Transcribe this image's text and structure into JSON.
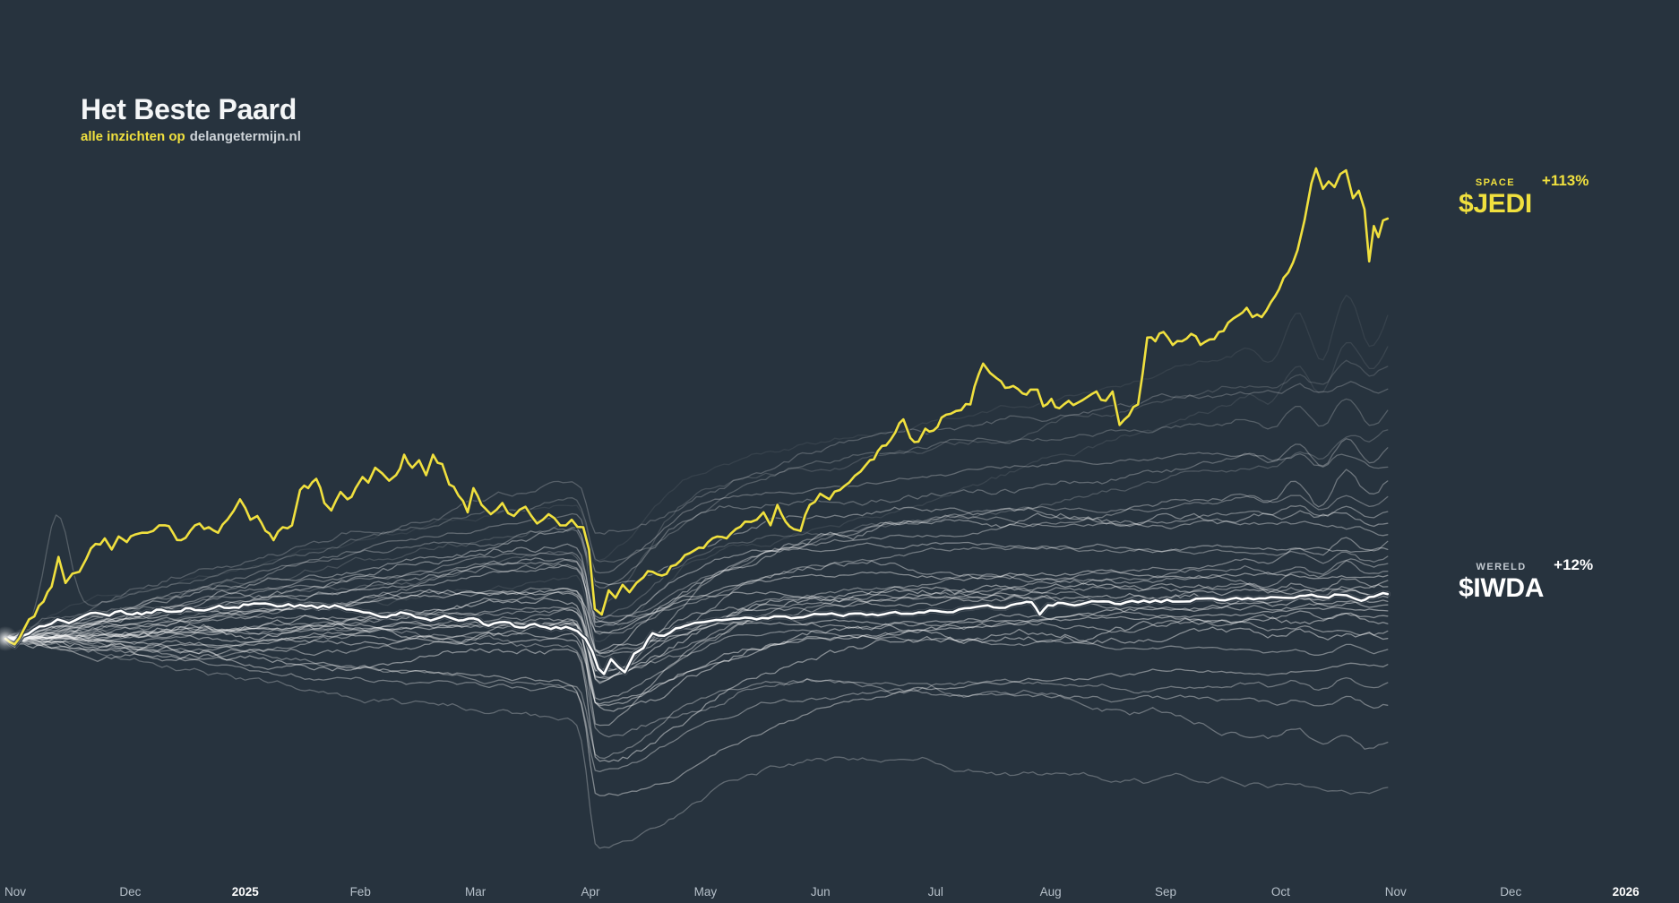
{
  "header": {
    "title": "Het Beste Paard",
    "subtitle_highlight": "alle inzichten op",
    "subtitle_rest": "delangetermijn.nl"
  },
  "labels": {
    "jedi": {
      "category": "SPACE",
      "ticker": "$JEDI",
      "change": "+113%"
    },
    "iwda": {
      "category": "WERELD",
      "ticker": "$IWDA",
      "change": "+12%"
    }
  },
  "colors": {
    "background": "#27333e",
    "accent_yellow": "#f0e03e",
    "benchmark_white": "#ffffff",
    "background_lines": "#ffffff",
    "axis_text": "#b6c0c9",
    "axis_text_bold": "#ffffff"
  },
  "chart_data": {
    "type": "line",
    "title": "Het Beste Paard",
    "description": "Cumulative return race of many funds from Nov 2024 to Nov 2025; highlighted $JEDI (SPACE) +113% vs benchmark $IWDA (WERELD) +12%, with ~36 unlabeled grey fund lines.",
    "x_axis": {
      "tick_labels": [
        "Nov",
        "Dec",
        "2025",
        "Feb",
        "Mar",
        "Apr",
        "May",
        "Jun",
        "Jul",
        "Aug",
        "Sep",
        "Oct",
        "Nov",
        "Dec",
        "2026"
      ],
      "bold_ticks": [
        "2025",
        "2026"
      ],
      "months_span": 14,
      "data_end_month": 11.96
    },
    "y_axis": {
      "visible": false,
      "unit": "percent_return_since_start",
      "baseline_pct": 0,
      "implied_range_pct": [
        -50,
        130
      ],
      "gridlines": false
    },
    "legend_position": "right-of-line-ends",
    "series": [
      {
        "name": "$JEDI",
        "category": "SPACE",
        "color": "#f0e03e",
        "final_return_pct": 113,
        "texture_jitter_pct": 1.0,
        "points": [
          [
            0,
            0
          ],
          [
            0.08,
            -1.5
          ],
          [
            0.16,
            2.5
          ],
          [
            0.25,
            6
          ],
          [
            0.33,
            10
          ],
          [
            0.4,
            14
          ],
          [
            0.46,
            22
          ],
          [
            0.52,
            15
          ],
          [
            0.58,
            17.5
          ],
          [
            0.64,
            18
          ],
          [
            0.7,
            21.5
          ],
          [
            0.78,
            25.5
          ],
          [
            0.86,
            27
          ],
          [
            0.92,
            24
          ],
          [
            0.98,
            27.5
          ],
          [
            1.05,
            26
          ],
          [
            1.12,
            28
          ],
          [
            1.18,
            28.5
          ],
          [
            1.28,
            29
          ],
          [
            1.38,
            30.5
          ],
          [
            1.45,
            28.5
          ],
          [
            1.52,
            26.5
          ],
          [
            1.6,
            29
          ],
          [
            1.68,
            31
          ],
          [
            1.76,
            30
          ],
          [
            1.84,
            28.5
          ],
          [
            1.92,
            32
          ],
          [
            2.03,
            37.5
          ],
          [
            2.12,
            32
          ],
          [
            2.18,
            33
          ],
          [
            2.25,
            29
          ],
          [
            2.32,
            26.5
          ],
          [
            2.4,
            30
          ],
          [
            2.48,
            30.5
          ],
          [
            2.55,
            40
          ],
          [
            2.62,
            40.5
          ],
          [
            2.69,
            43
          ],
          [
            2.76,
            36.5
          ],
          [
            2.82,
            34.5
          ],
          [
            2.9,
            39.5
          ],
          [
            2.96,
            37.5
          ],
          [
            3.03,
            40.5
          ],
          [
            3.09,
            43.5
          ],
          [
            3.14,
            42
          ],
          [
            3.2,
            46
          ],
          [
            3.26,
            44.5
          ],
          [
            3.32,
            42.5
          ],
          [
            3.38,
            44
          ],
          [
            3.45,
            49.5
          ],
          [
            3.52,
            46
          ],
          [
            3.58,
            48
          ],
          [
            3.64,
            44
          ],
          [
            3.7,
            49.5
          ],
          [
            3.78,
            47
          ],
          [
            3.84,
            41.5
          ],
          [
            3.92,
            38.5
          ],
          [
            4,
            34
          ],
          [
            4.05,
            40.5
          ],
          [
            4.12,
            36
          ],
          [
            4.2,
            33.5
          ],
          [
            4.3,
            36.5
          ],
          [
            4.4,
            33
          ],
          [
            4.5,
            35.5
          ],
          [
            4.6,
            31
          ],
          [
            4.7,
            33.5
          ],
          [
            4.8,
            30.5
          ],
          [
            4.9,
            32
          ],
          [
            5,
            30
          ],
          [
            5.05,
            24
          ],
          [
            5.1,
            8
          ],
          [
            5.16,
            6.5
          ],
          [
            5.22,
            13
          ],
          [
            5.28,
            11
          ],
          [
            5.34,
            14.5
          ],
          [
            5.4,
            12.5
          ],
          [
            5.46,
            15
          ],
          [
            5.52,
            16.5
          ],
          [
            5.6,
            18
          ],
          [
            5.68,
            17
          ],
          [
            5.76,
            19.5
          ],
          [
            5.84,
            21
          ],
          [
            5.92,
            23
          ],
          [
            6,
            24.5
          ],
          [
            6.08,
            26
          ],
          [
            6.16,
            27.5
          ],
          [
            6.24,
            27
          ],
          [
            6.32,
            29.5
          ],
          [
            6.4,
            31.5
          ],
          [
            6.5,
            32
          ],
          [
            6.56,
            34
          ],
          [
            6.62,
            30.5
          ],
          [
            6.68,
            36
          ],
          [
            6.75,
            31.5
          ],
          [
            6.82,
            29.5
          ],
          [
            6.88,
            29
          ],
          [
            6.96,
            36
          ],
          [
            7.05,
            39
          ],
          [
            7.13,
            37.5
          ],
          [
            7.22,
            40
          ],
          [
            7.3,
            42
          ],
          [
            7.4,
            45
          ],
          [
            7.48,
            48
          ],
          [
            7.55,
            50.5
          ],
          [
            7.62,
            52
          ],
          [
            7.7,
            55.5
          ],
          [
            7.77,
            59
          ],
          [
            7.83,
            54
          ],
          [
            7.9,
            53
          ],
          [
            7.96,
            56.5
          ],
          [
            8.03,
            56
          ],
          [
            8.1,
            59.5
          ],
          [
            8.18,
            60.5
          ],
          [
            8.27,
            61.5
          ],
          [
            8.35,
            63
          ],
          [
            8.42,
            71
          ],
          [
            8.46,
            74
          ],
          [
            8.52,
            71.5
          ],
          [
            8.58,
            70
          ],
          [
            8.65,
            67.5
          ],
          [
            8.72,
            68
          ],
          [
            8.8,
            66
          ],
          [
            8.87,
            67
          ],
          [
            8.93,
            67
          ],
          [
            8.98,
            62.5
          ],
          [
            9.05,
            64.5
          ],
          [
            9.12,
            62
          ],
          [
            9.2,
            64
          ],
          [
            9.28,
            63.5
          ],
          [
            9.36,
            65
          ],
          [
            9.44,
            66.5
          ],
          [
            9.52,
            64
          ],
          [
            9.58,
            66.5
          ],
          [
            9.64,
            57.5
          ],
          [
            9.72,
            60
          ],
          [
            9.8,
            63
          ],
          [
            9.88,
            81
          ],
          [
            9.95,
            80
          ],
          [
            10.02,
            82.5
          ],
          [
            10.1,
            79
          ],
          [
            10.18,
            80
          ],
          [
            10.26,
            82
          ],
          [
            10.34,
            79
          ],
          [
            10.42,
            80.5
          ],
          [
            10.5,
            82.5
          ],
          [
            10.58,
            85
          ],
          [
            10.67,
            87
          ],
          [
            10.74,
            89
          ],
          [
            10.79,
            86.5
          ],
          [
            10.87,
            86.5
          ],
          [
            10.95,
            90.5
          ],
          [
            11.02,
            94
          ],
          [
            11.1,
            98.5
          ],
          [
            11.18,
            104.5
          ],
          [
            11.24,
            112.5
          ],
          [
            11.3,
            122.5
          ],
          [
            11.34,
            126.5
          ],
          [
            11.4,
            121
          ],
          [
            11.45,
            123
          ],
          [
            11.5,
            121.5
          ],
          [
            11.55,
            125
          ],
          [
            11.6,
            126
          ],
          [
            11.66,
            118.5
          ],
          [
            11.71,
            120.5
          ],
          [
            11.76,
            115.5
          ],
          [
            11.8,
            101.5
          ],
          [
            11.84,
            111
          ],
          [
            11.88,
            108
          ],
          [
            11.92,
            112.5
          ],
          [
            11.96,
            113
          ]
        ]
      },
      {
        "name": "$IWDA",
        "category": "WERELD",
        "color": "#ffffff",
        "final_return_pct": 12,
        "texture_jitter_pct": 0.4,
        "points": [
          [
            0,
            0
          ],
          [
            0.08,
            -2
          ],
          [
            0.15,
            0.8
          ],
          [
            0.25,
            2.5
          ],
          [
            0.34,
            3.4
          ],
          [
            0.45,
            5.2
          ],
          [
            0.55,
            4.2
          ],
          [
            0.65,
            5.7
          ],
          [
            0.78,
            7
          ],
          [
            0.9,
            6.2
          ],
          [
            1,
            7.5
          ],
          [
            1.1,
            6.5
          ],
          [
            1.22,
            7.1
          ],
          [
            1.35,
            7.8
          ],
          [
            1.48,
            7.3
          ],
          [
            1.6,
            8.2
          ],
          [
            1.72,
            7.6
          ],
          [
            1.85,
            8.9
          ],
          [
            1.98,
            8.4
          ],
          [
            2.1,
            9.1
          ],
          [
            2.25,
            9.5
          ],
          [
            2.4,
            8.8
          ],
          [
            2.55,
            9.1
          ],
          [
            2.7,
            8.3
          ],
          [
            2.85,
            9
          ],
          [
            3,
            7.8
          ],
          [
            3.15,
            7
          ],
          [
            3.3,
            5.8
          ],
          [
            3.42,
            7.1
          ],
          [
            3.55,
            5.8
          ],
          [
            3.68,
            4.9
          ],
          [
            3.8,
            6.2
          ],
          [
            3.92,
            4.9
          ],
          [
            4.05,
            5.5
          ],
          [
            4.18,
            3.5
          ],
          [
            4.32,
            4.5
          ],
          [
            4.45,
            3
          ],
          [
            4.58,
            4
          ],
          [
            4.72,
            2.6
          ],
          [
            4.85,
            3.2
          ],
          [
            4.95,
            2
          ],
          [
            5.02,
            0
          ],
          [
            5.08,
            -3.5
          ],
          [
            5.13,
            -8
          ],
          [
            5.18,
            -9.5
          ],
          [
            5.24,
            -5.5
          ],
          [
            5.3,
            -7.5
          ],
          [
            5.36,
            -9
          ],
          [
            5.44,
            -4
          ],
          [
            5.52,
            -2.5
          ],
          [
            5.6,
            1.5
          ],
          [
            5.7,
            0.8
          ],
          [
            5.8,
            2.8
          ],
          [
            5.92,
            3.8
          ],
          [
            6.05,
            4.5
          ],
          [
            6.2,
            5
          ],
          [
            6.35,
            5.4
          ],
          [
            6.5,
            5.2
          ],
          [
            6.65,
            6
          ],
          [
            6.8,
            5.5
          ],
          [
            6.95,
            6.2
          ],
          [
            7.1,
            6.6
          ],
          [
            7.25,
            6.1
          ],
          [
            7.4,
            6.8
          ],
          [
            7.55,
            6.3
          ],
          [
            7.7,
            7.2
          ],
          [
            7.85,
            6.7
          ],
          [
            8,
            7.6
          ],
          [
            8.15,
            7.1
          ],
          [
            8.3,
            8.2
          ],
          [
            8.45,
            8.8
          ],
          [
            8.6,
            8.3
          ],
          [
            8.75,
            9.4
          ],
          [
            8.88,
            9.8
          ],
          [
            8.95,
            6.5
          ],
          [
            9.02,
            9
          ],
          [
            9.15,
            9.6
          ],
          [
            9.3,
            9.2
          ],
          [
            9.45,
            10
          ],
          [
            9.6,
            9.4
          ],
          [
            9.75,
            10.2
          ],
          [
            9.9,
            9.8
          ],
          [
            10.05,
            10.5
          ],
          [
            10.2,
            10
          ],
          [
            10.35,
            10.8
          ],
          [
            10.5,
            10.4
          ],
          [
            10.65,
            11
          ],
          [
            10.8,
            10.6
          ],
          [
            10.95,
            11.2
          ],
          [
            11.1,
            11
          ],
          [
            11.25,
            11.6
          ],
          [
            11.4,
            11.2
          ],
          [
            11.55,
            11.8
          ],
          [
            11.66,
            11
          ],
          [
            11.73,
            10.2
          ],
          [
            11.8,
            11.2
          ],
          [
            11.88,
            11.8
          ],
          [
            11.96,
            12
          ]
        ]
      }
    ],
    "background_series": {
      "description": "Unlabeled grey fund lines, all starting at 0% and crashing in early April 2025",
      "count": 36,
      "seed": 11,
      "crash_month": 5.12,
      "opacity_range": [
        0.07,
        0.45
      ],
      "final_returns_pct": [
        86,
        78,
        73,
        67,
        61,
        56,
        51,
        46,
        42,
        38,
        34,
        31,
        28,
        26,
        24,
        22,
        20,
        18,
        17,
        15.5,
        14,
        12.5,
        11,
        10,
        9,
        7.5,
        6,
        4,
        2,
        0,
        -3,
        -7,
        -12,
        -18,
        -28,
        -40
      ]
    }
  }
}
